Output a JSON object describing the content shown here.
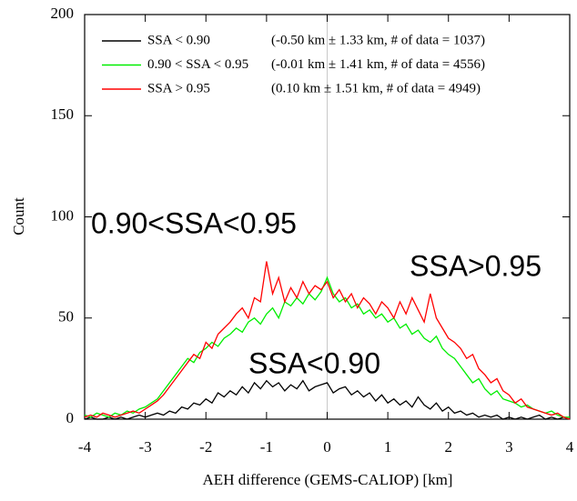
{
  "chart_data": {
    "type": "line",
    "x_label": "AEH difference (GEMS-CALIOP) [km]",
    "y_label": "Count",
    "x": [
      -4,
      -3.9,
      -3.8,
      -3.7,
      -3.6,
      -3.5,
      -3.4,
      -3.3,
      -3.2,
      -3.1,
      -3,
      -2.9,
      -2.8,
      -2.7,
      -2.6,
      -2.5,
      -2.4,
      -2.3,
      -2.2,
      -2.1,
      -2,
      -1.9,
      -1.8,
      -1.7,
      -1.6,
      -1.5,
      -1.4,
      -1.3,
      -1.2,
      -1.1,
      -1,
      -0.9,
      -0.8,
      -0.7,
      -0.6,
      -0.5,
      -0.4,
      -0.3,
      -0.2,
      -0.1,
      0,
      0.1,
      0.2,
      0.3,
      0.4,
      0.5,
      0.6,
      0.7,
      0.8,
      0.9,
      1,
      1.1,
      1.2,
      1.3,
      1.4,
      1.5,
      1.6,
      1.7,
      1.8,
      1.9,
      2,
      2.1,
      2.2,
      2.3,
      2.4,
      2.5,
      2.6,
      2.7,
      2.8,
      2.9,
      3,
      3.1,
      3.2,
      3.3,
      3.4,
      3.5,
      3.6,
      3.7,
      3.8,
      3.9,
      4
    ],
    "series": [
      {
        "name": "SSA < 0.90",
        "note": "(-0.50 km ±  1.33 km, # of data = 1037)",
        "color": "#000000",
        "values": [
          0,
          1,
          0,
          0,
          1,
          0,
          1,
          0,
          1,
          2,
          1,
          2,
          3,
          2,
          4,
          3,
          6,
          5,
          8,
          7,
          10,
          8,
          13,
          11,
          14,
          12,
          16,
          13,
          18,
          15,
          19,
          16,
          18,
          14,
          17,
          15,
          19,
          14,
          16,
          17,
          18,
          13,
          15,
          16,
          12,
          14,
          11,
          13,
          9,
          12,
          8,
          10,
          7,
          9,
          6,
          11,
          7,
          5,
          8,
          4,
          6,
          3,
          4,
          2,
          3,
          1,
          2,
          1,
          2,
          0,
          1,
          0,
          1,
          0,
          1,
          2,
          0,
          1,
          0,
          1,
          0
        ]
      },
      {
        "name": "0.90 < SSA < 0.95",
        "note": "(-0.01 km ±  1.41 km, # of data = 4556)",
        "color": "#00ee00",
        "values": [
          2,
          1,
          3,
          2,
          1,
          3,
          2,
          4,
          3,
          5,
          6,
          8,
          10,
          14,
          18,
          22,
          26,
          30,
          28,
          33,
          35,
          38,
          36,
          40,
          42,
          45,
          43,
          48,
          50,
          47,
          52,
          55,
          50,
          58,
          56,
          60,
          57,
          62,
          59,
          63,
          70,
          62,
          58,
          60,
          55,
          57,
          52,
          54,
          50,
          52,
          48,
          50,
          45,
          47,
          42,
          44,
          40,
          38,
          41,
          35,
          32,
          30,
          26,
          22,
          18,
          20,
          15,
          12,
          14,
          10,
          9,
          8,
          6,
          7,
          5,
          4,
          3,
          4,
          2,
          1,
          1
        ]
      },
      {
        "name": "SSA > 0.95",
        "note": "(0.10 km ±  1.51 km, # of data = 4949)",
        "color": "#ff0000",
        "values": [
          1,
          2,
          1,
          3,
          2,
          1,
          2,
          3,
          4,
          3,
          5,
          7,
          9,
          12,
          16,
          20,
          24,
          28,
          32,
          30,
          38,
          35,
          42,
          45,
          48,
          52,
          55,
          50,
          60,
          58,
          78,
          62,
          70,
          58,
          65,
          60,
          68,
          62,
          66,
          64,
          68,
          60,
          64,
          58,
          62,
          55,
          60,
          57,
          52,
          58,
          55,
          50,
          58,
          52,
          60,
          54,
          48,
          62,
          50,
          45,
          40,
          38,
          35,
          30,
          32,
          25,
          22,
          18,
          20,
          14,
          12,
          8,
          10,
          6,
          5,
          4,
          3,
          2,
          3,
          1,
          0
        ]
      }
    ],
    "annotations": [
      {
        "text": "0.90<SSA<0.95",
        "color": "#00b050"
      },
      {
        "text": "SSA>0.95",
        "color": "#ff0000"
      },
      {
        "text": "SSA<0.90",
        "color": "#000000"
      }
    ],
    "xlim": [
      -4,
      4
    ],
    "ylim": [
      0,
      200
    ],
    "xticks": [
      -4,
      -3,
      -2,
      -1,
      0,
      1,
      2,
      3,
      4
    ],
    "yticks": [
      0,
      50,
      100,
      150,
      200
    ],
    "zero_line": true
  }
}
